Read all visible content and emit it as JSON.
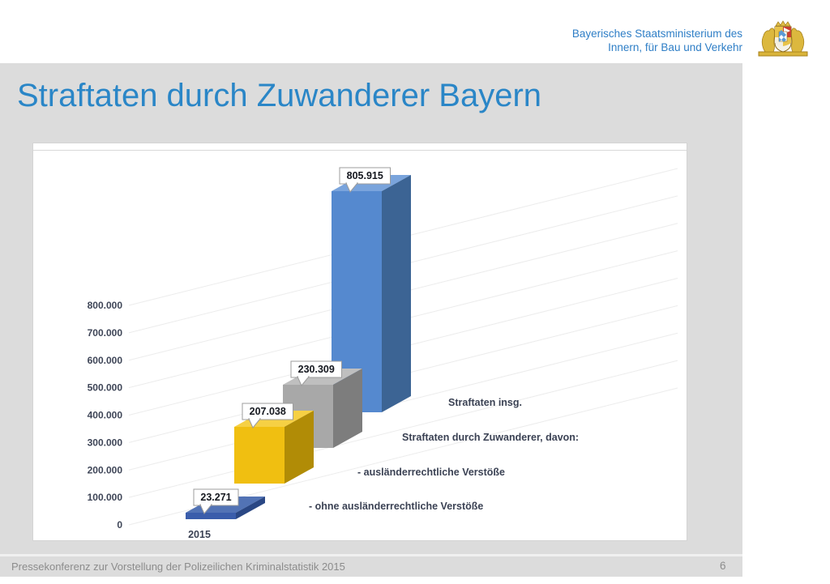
{
  "header": {
    "ministry_line1": "Bayerisches Staatsministerium des",
    "ministry_line2": "Innern, für Bau und Verkehr",
    "logo_icon": "bavarian-coat-of-arms"
  },
  "title": "Straftaten durch Zuwanderer Bayern",
  "footer": {
    "caption": "Pressekonferenz zur Vorstellung der Polizeilichen Kriminalstatistik 2015",
    "page_number": "6"
  },
  "colors": {
    "title_blue": "#2a86c7",
    "header_text_blue": "#2e7ec6",
    "slide_background": "#dcdcdc",
    "chart_background": "#ffffff"
  },
  "chart_data": {
    "type": "bar",
    "projection": "3d",
    "title": "",
    "x_category": "2015",
    "ylim": [
      0,
      800000
    ],
    "grid": true,
    "legend_position": "labels-right-of-bars-along-depth",
    "yticks": [
      {
        "value": 0,
        "label": "0"
      },
      {
        "value": 100000,
        "label": "100.000"
      },
      {
        "value": 200000,
        "label": "200.000"
      },
      {
        "value": 300000,
        "label": "300.000"
      },
      {
        "value": 400000,
        "label": "400.000"
      },
      {
        "value": 500000,
        "label": "500.000"
      },
      {
        "value": 600000,
        "label": "600.000"
      },
      {
        "value": 700000,
        "label": "700.000"
      },
      {
        "value": 800000,
        "label": "800.000"
      }
    ],
    "series": [
      {
        "id": "ohne-auslaenderrechtliche-verstoesse",
        "name": "- ohne ausländerrechtliche Verstöße",
        "value": 23271,
        "label": "23.271",
        "colors": {
          "front": "#3a5dab",
          "side": "#2a4784",
          "top": "#5273b5"
        }
      },
      {
        "id": "auslaenderrechtliche-verstoesse",
        "name": "- ausländerrechtliche Verstöße",
        "value": 207038,
        "label": "207.038",
        "colors": {
          "front": "#f0bf11",
          "side": "#b18c06",
          "top": "#f6d044"
        }
      },
      {
        "id": "straftaten-durch-zuwanderer",
        "name": "Straftaten durch Zuwanderer, davon:",
        "value": 230309,
        "label": "230.309",
        "colors": {
          "front": "#a8a8a8",
          "side": "#7d7d7d",
          "top": "#bfbfbf"
        }
      },
      {
        "id": "straftaten-insgesamt",
        "name": "Straftaten insg.",
        "value": 805915,
        "label": "805.915",
        "colors": {
          "front": "#5589cf",
          "side": "#3c6494",
          "top": "#7aa4dc"
        }
      }
    ]
  }
}
